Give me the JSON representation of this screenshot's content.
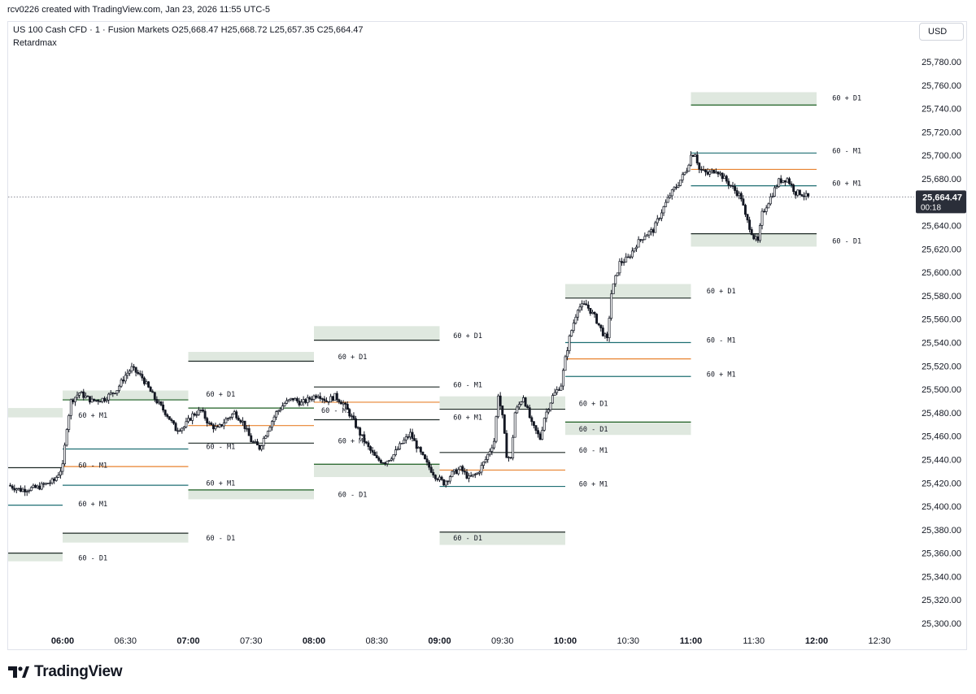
{
  "header": {
    "created_by": "rcv0226 created with TradingView.com, Jan 23, 2026 11:55 UTC-5"
  },
  "legend": {
    "symbol": "US 100 Cash CFD · 1 · Fusion Markets",
    "open": "O25,668.47",
    "high": "H25,668.72",
    "low": "L25,657.35",
    "close": "C25,664.47",
    "indicator": "Retardmax"
  },
  "currency": "USD",
  "footer": {
    "brand": "TradingView"
  },
  "colors": {
    "zone_fill": "#dfe8df",
    "line_dark": "#1f2a26",
    "line_green": "#1b5e20",
    "line_teal": "#1f6f73",
    "line_orange": "#e8822f",
    "candle": "#131722",
    "price_label": "#2a2e39"
  },
  "chart_data": {
    "type": "candlestick",
    "ylim": [
      25290,
      25795
    ],
    "y_ticks": [
      "25,300.00",
      "25,320.00",
      "25,340.00",
      "25,360.00",
      "25,380.00",
      "25,400.00",
      "25,420.00",
      "25,440.00",
      "25,460.00",
      "25,480.00",
      "25,500.00",
      "25,520.00",
      "25,540.00",
      "25,560.00",
      "25,580.00",
      "25,600.00",
      "25,620.00",
      "25,640.00",
      "25,660.00",
      "25,680.00",
      "25,700.00",
      "25,720.00",
      "25,740.00",
      "25,760.00",
      "25,780.00"
    ],
    "y_tick_values": [
      25300,
      25320,
      25340,
      25360,
      25380,
      25400,
      25420,
      25440,
      25460,
      25480,
      25500,
      25520,
      25540,
      25560,
      25580,
      25600,
      25620,
      25640,
      25660,
      25680,
      25700,
      25720,
      25740,
      25760,
      25780
    ],
    "x_ticks": [
      {
        "label": "06:00",
        "t": 0,
        "bold": true
      },
      {
        "label": "06:30",
        "t": 30,
        "bold": false
      },
      {
        "label": "07:00",
        "t": 60,
        "bold": true
      },
      {
        "label": "07:30",
        "t": 90,
        "bold": false
      },
      {
        "label": "08:00",
        "t": 120,
        "bold": true
      },
      {
        "label": "08:30",
        "t": 150,
        "bold": false
      },
      {
        "label": "09:00",
        "t": 180,
        "bold": true
      },
      {
        "label": "09:30",
        "t": 210,
        "bold": false
      },
      {
        "label": "10:00",
        "t": 240,
        "bold": true
      },
      {
        "label": "10:30",
        "t": 270,
        "bold": false
      },
      {
        "label": "11:00",
        "t": 300,
        "bold": true
      },
      {
        "label": "11:30",
        "t": 330,
        "bold": false
      },
      {
        "label": "12:00",
        "t": 360,
        "bold": true
      },
      {
        "label": "12:30",
        "t": 390,
        "bold": false
      }
    ],
    "xlim_minutes": [
      -26,
      400
    ],
    "current_price": {
      "value": 25664.47,
      "label": "25,664.47",
      "countdown": "00:18"
    },
    "price_path": [
      [
        -26,
        25418
      ],
      [
        -20,
        25414
      ],
      [
        -12,
        25416
      ],
      [
        -4,
        25422
      ],
      [
        0,
        25434
      ],
      [
        2,
        25468
      ],
      [
        4,
        25490
      ],
      [
        8,
        25497
      ],
      [
        14,
        25490
      ],
      [
        20,
        25492
      ],
      [
        26,
        25500
      ],
      [
        30,
        25512
      ],
      [
        33,
        25518
      ],
      [
        38,
        25510
      ],
      [
        44,
        25492
      ],
      [
        50,
        25478
      ],
      [
        54,
        25466
      ],
      [
        58,
        25468
      ],
      [
        62,
        25478
      ],
      [
        66,
        25482
      ],
      [
        70,
        25470
      ],
      [
        74,
        25466
      ],
      [
        78,
        25474
      ],
      [
        82,
        25480
      ],
      [
        86,
        25472
      ],
      [
        90,
        25456
      ],
      [
        94,
        25450
      ],
      [
        98,
        25466
      ],
      [
        102,
        25480
      ],
      [
        106,
        25488
      ],
      [
        110,
        25492
      ],
      [
        114,
        25488
      ],
      [
        118,
        25492
      ],
      [
        122,
        25496
      ],
      [
        126,
        25490
      ],
      [
        130,
        25494
      ],
      [
        134,
        25488
      ],
      [
        138,
        25476
      ],
      [
        142,
        25462
      ],
      [
        146,
        25450
      ],
      [
        150,
        25440
      ],
      [
        154,
        25438
      ],
      [
        158,
        25444
      ],
      [
        162,
        25454
      ],
      [
        166,
        25462
      ],
      [
        170,
        25448
      ],
      [
        174,
        25436
      ],
      [
        178,
        25426
      ],
      [
        182,
        25420
      ],
      [
        186,
        25428
      ],
      [
        190,
        25432
      ],
      [
        194,
        25424
      ],
      [
        198,
        25428
      ],
      [
        202,
        25440
      ],
      [
        206,
        25456
      ],
      [
        208,
        25496
      ],
      [
        210,
        25476
      ],
      [
        212,
        25444
      ],
      [
        214,
        25440
      ],
      [
        216,
        25480
      ],
      [
        220,
        25494
      ],
      [
        224,
        25470
      ],
      [
        228,
        25458
      ],
      [
        230,
        25476
      ],
      [
        234,
        25494
      ],
      [
        238,
        25504
      ],
      [
        240,
        25526
      ],
      [
        242,
        25544
      ],
      [
        246,
        25570
      ],
      [
        250,
        25572
      ],
      [
        254,
        25562
      ],
      [
        258,
        25548
      ],
      [
        260,
        25542
      ],
      [
        262,
        25582
      ],
      [
        266,
        25608
      ],
      [
        270,
        25612
      ],
      [
        274,
        25624
      ],
      [
        278,
        25632
      ],
      [
        282,
        25636
      ],
      [
        286,
        25652
      ],
      [
        290,
        25666
      ],
      [
        294,
        25676
      ],
      [
        298,
        25688
      ],
      [
        300,
        25700
      ],
      [
        302,
        25702
      ],
      [
        304,
        25688
      ],
      [
        308,
        25684
      ],
      [
        312,
        25688
      ],
      [
        316,
        25680
      ],
      [
        320,
        25672
      ],
      [
        324,
        25664
      ],
      [
        326,
        25648
      ],
      [
        330,
        25630
      ],
      [
        332,
        25626
      ],
      [
        334,
        25650
      ],
      [
        338,
        25664
      ],
      [
        342,
        25678
      ],
      [
        346,
        25680
      ],
      [
        350,
        25668
      ],
      [
        352,
        25668
      ],
      [
        356,
        25664
      ]
    ],
    "levels": [
      {
        "type": "zone",
        "t0": -26,
        "t1": 0,
        "y0": 25476,
        "y1": 25484
      },
      {
        "type": "line",
        "t0": -26,
        "t1": 0,
        "y": 25433,
        "color": "line_dark"
      },
      {
        "type": "line",
        "t0": -26,
        "t1": 0,
        "y": 25401,
        "color": "line_teal"
      },
      {
        "type": "zone",
        "t0": -26,
        "t1": 0,
        "y0": 25353,
        "y1": 25360,
        "line": "top"
      },
      {
        "type": "zone",
        "t0": 0,
        "t1": 60,
        "y0": 25491,
        "y1": 25499,
        "line": "bottom",
        "color": "line_green"
      },
      {
        "type": "line",
        "t0": 0,
        "t1": 60,
        "y": 25449,
        "color": "line_teal"
      },
      {
        "type": "line",
        "t0": 0,
        "t1": 60,
        "y": 25434,
        "color": "line_orange"
      },
      {
        "type": "line",
        "t0": 0,
        "t1": 60,
        "y": 25418,
        "color": "line_teal"
      },
      {
        "type": "zone",
        "t0": 0,
        "t1": 60,
        "y0": 25369,
        "y1": 25377,
        "line": "top"
      },
      {
        "type": "zone",
        "t0": 60,
        "t1": 120,
        "y0": 25524,
        "y1": 25532,
        "line": "bottom"
      },
      {
        "type": "line",
        "t0": 60,
        "t1": 120,
        "y": 25484,
        "color": "line_green"
      },
      {
        "type": "line",
        "t0": 60,
        "t1": 120,
        "y": 25469,
        "color": "line_orange"
      },
      {
        "type": "line",
        "t0": 60,
        "t1": 120,
        "y": 25454,
        "color": "line_dark"
      },
      {
        "type": "zone",
        "t0": 60,
        "t1": 120,
        "y0": 25406,
        "y1": 25414,
        "line": "top",
        "color": "line_green"
      },
      {
        "type": "zone",
        "t0": 120,
        "t1": 180,
        "y0": 25542,
        "y1": 25554,
        "line": "bottom"
      },
      {
        "type": "line",
        "t0": 120,
        "t1": 180,
        "y": 25502,
        "color": "line_dark"
      },
      {
        "type": "line",
        "t0": 120,
        "t1": 180,
        "y": 25489,
        "color": "line_orange"
      },
      {
        "type": "line",
        "t0": 120,
        "t1": 180,
        "y": 25474,
        "color": "line_dark"
      },
      {
        "type": "zone",
        "t0": 120,
        "t1": 180,
        "y0": 25425,
        "y1": 25436,
        "line": "top",
        "color": "line_green"
      },
      {
        "type": "zone",
        "t0": 180,
        "t1": 240,
        "y0": 25483,
        "y1": 25494,
        "line": "bottom"
      },
      {
        "type": "line",
        "t0": 180,
        "t1": 240,
        "y": 25446,
        "color": "line_dark"
      },
      {
        "type": "line",
        "t0": 180,
        "t1": 240,
        "y": 25431,
        "color": "line_orange"
      },
      {
        "type": "line",
        "t0": 180,
        "t1": 240,
        "y": 25417,
        "color": "line_teal"
      },
      {
        "type": "zone",
        "t0": 180,
        "t1": 240,
        "y0": 25367,
        "y1": 25378,
        "line": "top"
      },
      {
        "type": "zone",
        "t0": 240,
        "t1": 300,
        "y0": 25578,
        "y1": 25590,
        "line": "bottom"
      },
      {
        "type": "line",
        "t0": 240,
        "t1": 300,
        "y": 25540,
        "color": "line_teal"
      },
      {
        "type": "line",
        "t0": 240,
        "t1": 300,
        "y": 25526,
        "color": "line_orange"
      },
      {
        "type": "line",
        "t0": 240,
        "t1": 300,
        "y": 25511,
        "color": "line_teal"
      },
      {
        "type": "zone",
        "t0": 240,
        "t1": 300,
        "y0": 25461,
        "y1": 25472,
        "line": "top",
        "color": "line_green"
      },
      {
        "type": "zone",
        "t0": 300,
        "t1": 360,
        "y0": 25743,
        "y1": 25754,
        "line": "bottom",
        "color": "line_green"
      },
      {
        "type": "line",
        "t0": 300,
        "t1": 360,
        "y": 25702,
        "color": "line_teal"
      },
      {
        "type": "line",
        "t0": 300,
        "t1": 360,
        "y": 25688,
        "color": "line_orange"
      },
      {
        "type": "line",
        "t0": 300,
        "t1": 360,
        "y": 25674,
        "color": "line_teal"
      },
      {
        "type": "zone",
        "t0": 300,
        "t1": 360,
        "y0": 25622,
        "y1": 25633,
        "line": "top"
      }
    ],
    "annotations": [
      {
        "text": "60 + D1",
        "t": 65,
        "y": 25496
      },
      {
        "text": "60 + D1",
        "t": 128,
        "y": 25528
      },
      {
        "text": "60 + D1",
        "t": 183,
        "y": 25546
      },
      {
        "text": "60 + D1",
        "t": 243,
        "y": 25488
      },
      {
        "text": "60 + D1",
        "t": 304,
        "y": 25584
      },
      {
        "text": "60 + D1",
        "t": 364,
        "y": 25749
      },
      {
        "text": "60 - M1",
        "t": 65,
        "y": 25451
      },
      {
        "text": "60 - M1",
        "t": 183,
        "y": 25504
      },
      {
        "text": "60 - M1",
        "t": 243,
        "y": 25448
      },
      {
        "text": "60 - M1",
        "t": 304,
        "y": 25542
      },
      {
        "text": "60 - M1",
        "t": 364,
        "y": 25704
      },
      {
        "text": "60 - M1",
        "t": 4,
        "y": 25435
      },
      {
        "text": "60 + M1",
        "t": 4,
        "y": 25402
      },
      {
        "text": "60 + M1",
        "t": 65,
        "y": 25420
      },
      {
        "text": "60 + M1",
        "t": 128,
        "y": 25456
      },
      {
        "text": "60 + M1",
        "t": 183,
        "y": 25476
      },
      {
        "text": "60 + M1",
        "t": 243,
        "y": 25419
      },
      {
        "text": "60 + M1",
        "t": 304,
        "y": 25513
      },
      {
        "text": "60 + M1",
        "t": 364,
        "y": 25676
      },
      {
        "text": "60 - D1",
        "t": 4,
        "y": 25356
      },
      {
        "text": "60 - D1",
        "t": 65,
        "y": 25373
      },
      {
        "text": "60 - D1",
        "t": 128,
        "y": 25410
      },
      {
        "text": "60 - D1",
        "t": 243,
        "y": 25466
      },
      {
        "text": "60 - D1",
        "t": 183,
        "y": 25373
      },
      {
        "text": "60 - D1",
        "t": 364,
        "y": 25627
      },
      {
        "text": "60 + M1",
        "t": 4,
        "y": 25478
      },
      {
        "text": "60 - M1",
        "t": 120,
        "y": 25482
      }
    ]
  }
}
